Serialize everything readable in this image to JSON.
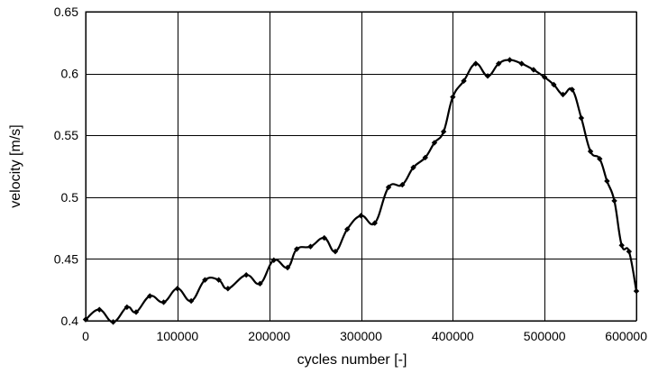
{
  "chart_data": {
    "type": "line",
    "title": "",
    "xlabel": "cycles number [-]",
    "ylabel": "velocity [m/s]",
    "xlim": [
      0,
      600000
    ],
    "ylim": [
      0.4,
      0.65
    ],
    "x_ticks": [
      0,
      100000,
      200000,
      300000,
      400000,
      500000,
      600000
    ],
    "y_ticks": [
      0.4,
      0.45,
      0.5,
      0.55,
      0.6,
      0.65
    ],
    "x_tick_labels": [
      "0",
      "100000",
      "200000",
      "300000",
      "400000",
      "500000",
      "600000"
    ],
    "y_tick_labels": [
      "0.4",
      "0.45",
      "0.5",
      "0.55",
      "0.6",
      "0.65"
    ],
    "grid": true,
    "legend": "none",
    "series": [
      {
        "color": "#000000",
        "marker": "diamond",
        "points": [
          [
            0,
            0.401
          ],
          [
            15000,
            0.409
          ],
          [
            30000,
            0.399
          ],
          [
            45000,
            0.411
          ],
          [
            55000,
            0.407
          ],
          [
            70000,
            0.42
          ],
          [
            85000,
            0.415
          ],
          [
            100000,
            0.426
          ],
          [
            115000,
            0.416
          ],
          [
            130000,
            0.433
          ],
          [
            145000,
            0.433
          ],
          [
            155000,
            0.426
          ],
          [
            175000,
            0.437
          ],
          [
            190000,
            0.43
          ],
          [
            205000,
            0.449
          ],
          [
            220000,
            0.443
          ],
          [
            230000,
            0.458
          ],
          [
            245000,
            0.46
          ],
          [
            260000,
            0.467
          ],
          [
            272000,
            0.456
          ],
          [
            285000,
            0.474
          ],
          [
            300000,
            0.485
          ],
          [
            315000,
            0.479
          ],
          [
            330000,
            0.508
          ],
          [
            345000,
            0.51
          ],
          [
            357000,
            0.524
          ],
          [
            370000,
            0.532
          ],
          [
            380000,
            0.544
          ],
          [
            390000,
            0.553
          ],
          [
            400000,
            0.581
          ],
          [
            412000,
            0.594
          ],
          [
            425000,
            0.608
          ],
          [
            438000,
            0.598
          ],
          [
            450000,
            0.608
          ],
          [
            462000,
            0.611
          ],
          [
            475000,
            0.608
          ],
          [
            488000,
            0.603
          ],
          [
            500000,
            0.597
          ],
          [
            510000,
            0.591
          ],
          [
            520000,
            0.583
          ],
          [
            530000,
            0.587
          ],
          [
            540000,
            0.564
          ],
          [
            550000,
            0.537
          ],
          [
            560000,
            0.531
          ],
          [
            568000,
            0.513
          ],
          [
            576000,
            0.497
          ],
          [
            584000,
            0.461
          ],
          [
            592000,
            0.456
          ],
          [
            600000,
            0.424
          ]
        ]
      }
    ]
  }
}
